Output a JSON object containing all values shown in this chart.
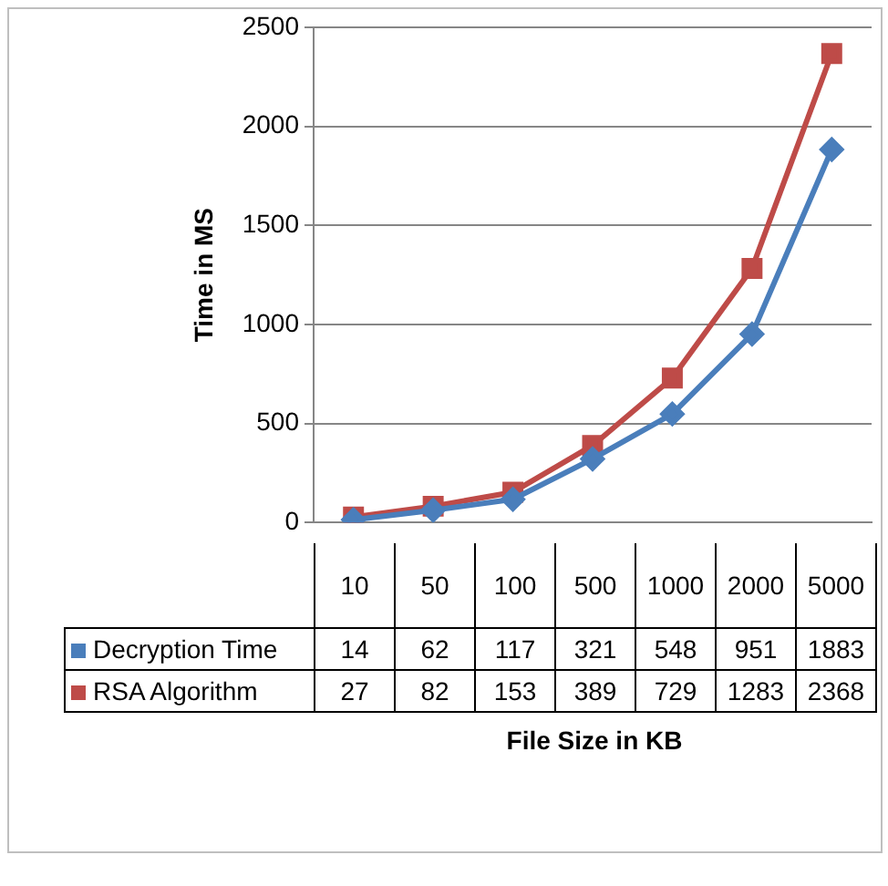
{
  "chart_data": {
    "type": "line",
    "xlabel": "File Size in KB",
    "ylabel": "Time in MS",
    "categories": [
      "10",
      "50",
      "100",
      "500",
      "1000",
      "2000",
      "5000"
    ],
    "series": [
      {
        "name": "Decryption Time",
        "color": "#4a7ebb",
        "marker": "diamond",
        "values": [
          14,
          62,
          117,
          321,
          548,
          951,
          1883
        ]
      },
      {
        "name": "RSA Algorithm",
        "color": "#be4b48",
        "marker": "square",
        "values": [
          27,
          82,
          153,
          389,
          729,
          1283,
          2368
        ]
      }
    ],
    "ylim": [
      0,
      2500
    ],
    "yticks": [
      0,
      500,
      1000,
      1500,
      2000,
      2500
    ],
    "grid": "y",
    "data_labels": true,
    "legend": "bottom",
    "line_style": "solid"
  }
}
